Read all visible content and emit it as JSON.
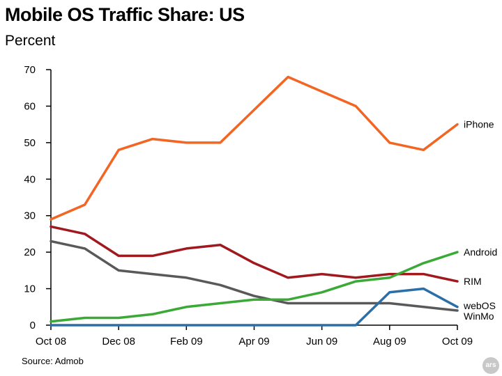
{
  "source": "Source: Admob",
  "logo_text": "ars",
  "chart_data": {
    "type": "line",
    "title": "Mobile OS Traffic Share: US",
    "subtitle": "Percent",
    "xlabel": "",
    "ylabel": "",
    "x": [
      "Oct 08",
      "Nov 08",
      "Dec 08",
      "Jan 09",
      "Feb 09",
      "Mar 09",
      "Apr 09",
      "May 09",
      "Jun 09",
      "Jul 09",
      "Aug 09",
      "Sep 09",
      "Oct 09"
    ],
    "x_tick_labels": [
      "Oct 08",
      "Dec 08",
      "Feb 09",
      "Apr 09",
      "Jun 09",
      "Aug 09",
      "Oct 09"
    ],
    "ylim": [
      0,
      70
    ],
    "y_ticks": [
      0,
      10,
      20,
      30,
      40,
      50,
      60,
      70
    ],
    "grid": false,
    "legend": "inline labels at right end of lines",
    "series": [
      {
        "name": "iPhone",
        "color": "#f26522",
        "values": [
          29,
          33,
          48,
          51,
          50,
          50,
          59,
          68,
          64,
          60,
          50,
          48,
          55
        ]
      },
      {
        "name": "RIM",
        "color": "#a0191e",
        "values": [
          27,
          25,
          19,
          19,
          21,
          22,
          17,
          13,
          14,
          13,
          14,
          14,
          12
        ]
      },
      {
        "name": "WinMo",
        "color": "#595959",
        "values": [
          23,
          21,
          15,
          14,
          13,
          11,
          8,
          6,
          6,
          6,
          6,
          5,
          4
        ]
      },
      {
        "name": "Android",
        "color": "#3aa935",
        "values": [
          1,
          2,
          2,
          3,
          5,
          6,
          7,
          7,
          9,
          12,
          13,
          17,
          20
        ]
      },
      {
        "name": "webOS",
        "color": "#2a6fa8",
        "values": [
          0,
          0,
          0,
          0,
          0,
          0,
          0,
          0,
          0,
          0,
          9,
          10,
          5
        ]
      }
    ]
  }
}
